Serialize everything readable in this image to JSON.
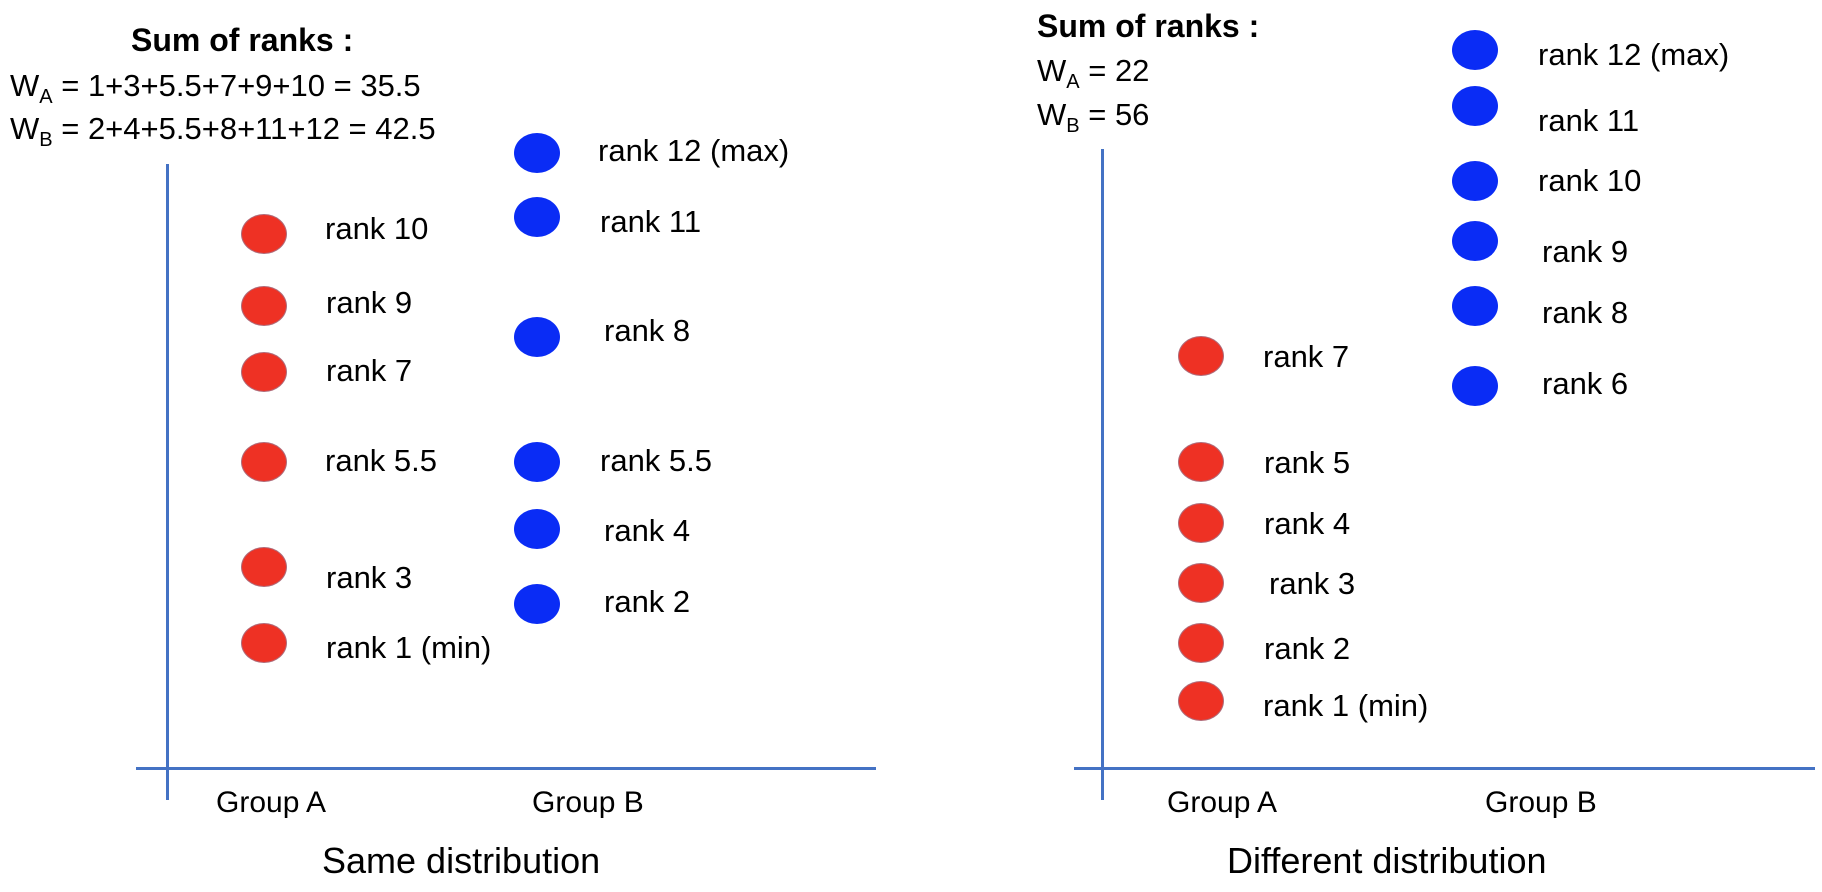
{
  "left": {
    "heading": "Sum of ranks :",
    "wa": {
      "letter": "W",
      "sub": "A",
      "rest": " = 1+3+5.5+7+9+10 = 35.5"
    },
    "wb": {
      "letter": "W",
      "sub": "B",
      "rest": " = 2+4+5.5+8+11+12 = 42.5"
    },
    "group_a": "Group A",
    "group_b": "Group B",
    "caption": "Same distribution",
    "a_ranks": [
      "rank 10",
      "rank 9",
      "rank 7",
      "rank 5.5",
      "rank 3",
      "rank 1 (min)"
    ],
    "b_ranks": [
      "rank 12 (max)",
      "rank 11",
      "rank 8",
      "rank 5.5",
      "rank 4",
      "rank 2"
    ]
  },
  "right": {
    "heading": "Sum of ranks :",
    "wa": {
      "letter": "W",
      "sub": "A",
      "rest": " = 22"
    },
    "wb": {
      "letter": "W",
      "sub": "B",
      "rest": " = 56"
    },
    "group_a": "Group A",
    "group_b": "Group B",
    "caption": "Different distribution",
    "a_ranks": [
      "rank 7",
      "rank 5",
      "rank 4",
      "rank 3",
      "rank 2",
      "rank 1 (min)"
    ],
    "b_ranks": [
      "rank 12 (max)",
      "rank 11",
      "rank 10",
      "rank 9",
      "rank 8",
      "rank 6"
    ]
  },
  "colors": {
    "group_a": "#ee3124",
    "group_b": "#0a2cf5",
    "axis": "#4472c4"
  }
}
